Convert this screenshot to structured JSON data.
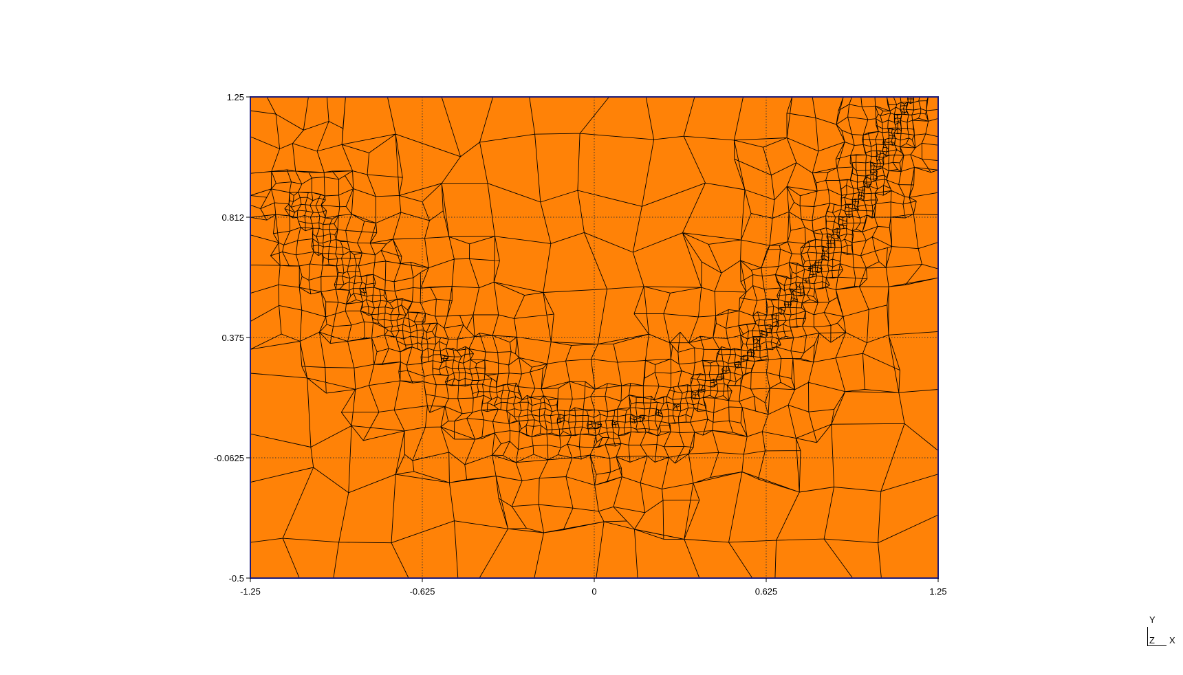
{
  "plot": {
    "fill_color": "#ff8207",
    "frame_color": "#1a1a7a",
    "mesh_line_color": "#000000",
    "grid_style": "dotted",
    "x_ticks": [
      "-1.25",
      "-0.625",
      "0",
      "0.625",
      "1.25"
    ],
    "y_ticks": [
      "1.25",
      "0.812",
      "0.375",
      "-0.0625",
      "-0.5"
    ],
    "x_range": [
      -1.25,
      1.25
    ],
    "y_range": [
      -0.5,
      1.25
    ],
    "mesh_description": "quadrilateral-dominant mesh refined along a curved band"
  },
  "triad": {
    "y_label": "Y",
    "z_label": "Z",
    "x_label": "X"
  }
}
